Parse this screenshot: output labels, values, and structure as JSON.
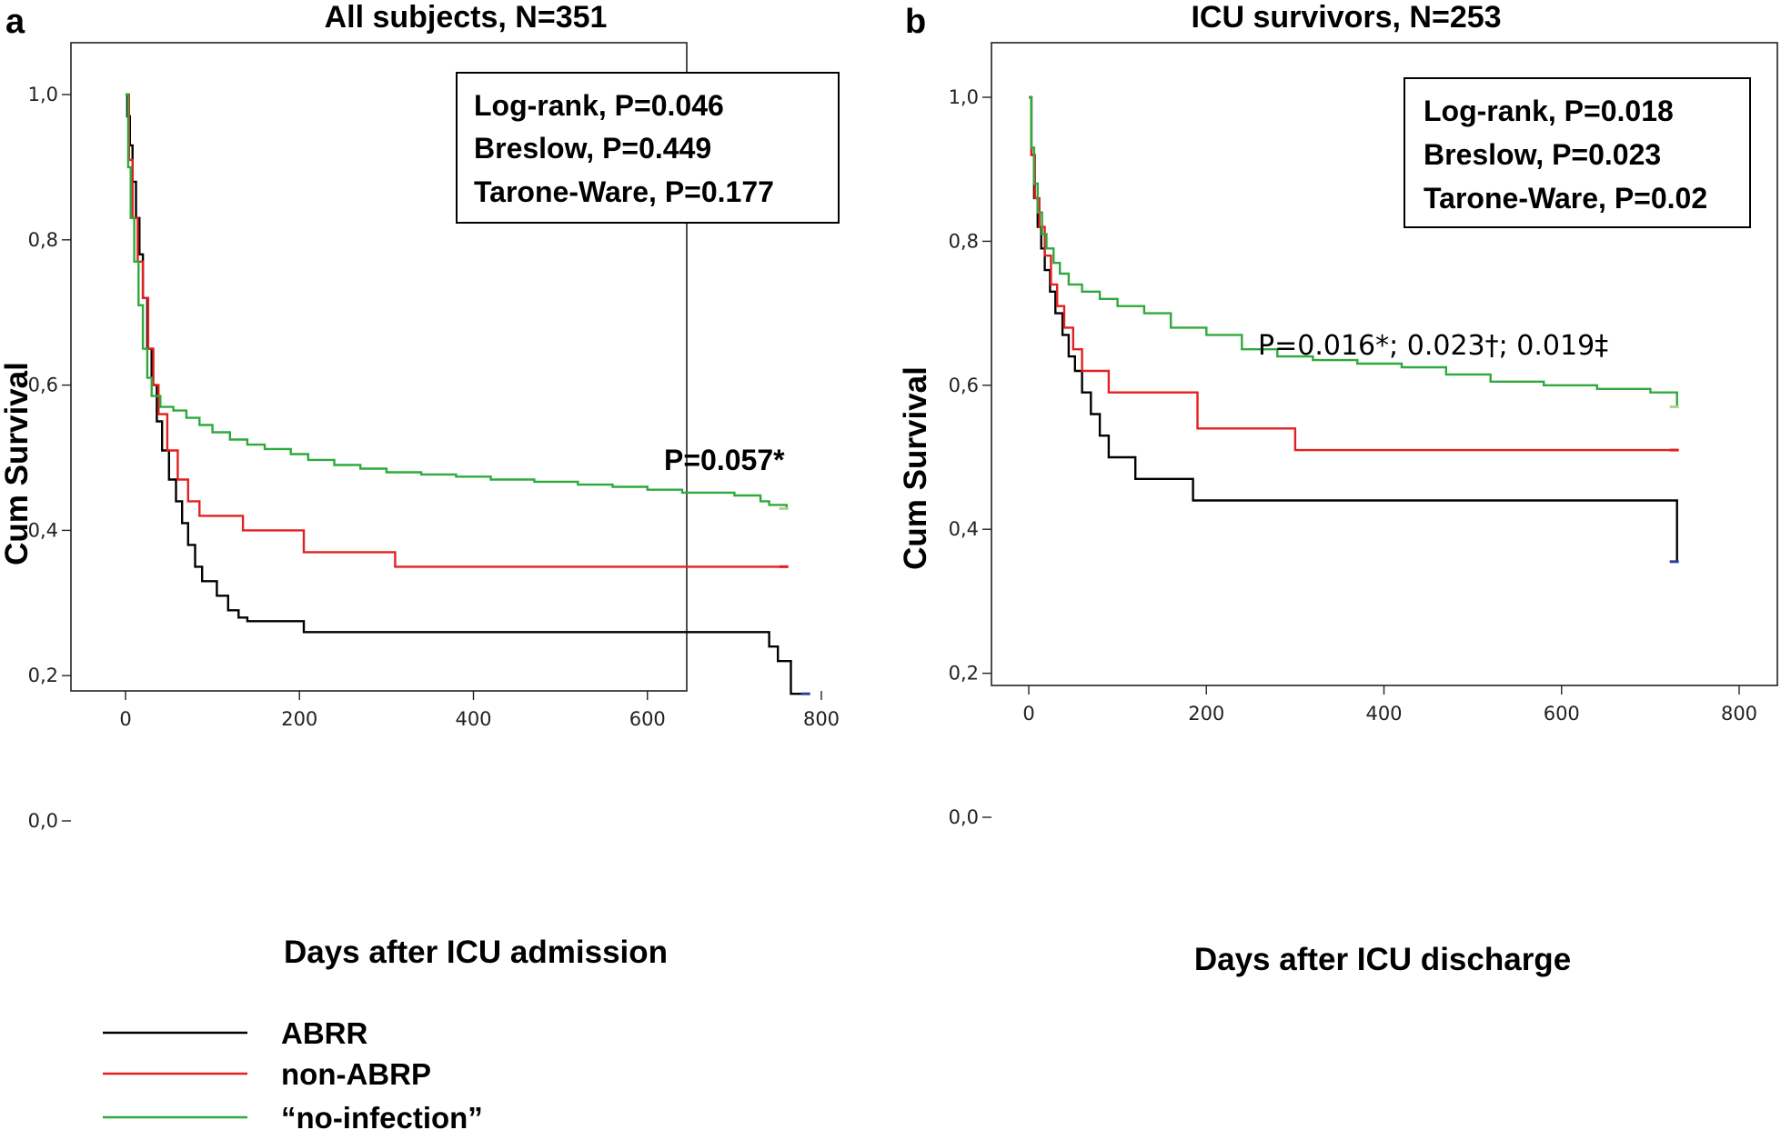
{
  "chart_data": [
    {
      "panel": "a",
      "type": "line",
      "title": "All subjects, N=351",
      "xlabel": "Days after ICU admission",
      "ylabel": "Cum Survival",
      "xlim": [
        -30,
        800
      ],
      "ylim": [
        -0.05,
        1.05
      ],
      "xticks": [
        0,
        200,
        400,
        600,
        800
      ],
      "xtick_labels": [
        "0",
        "200",
        "400",
        "600",
        "800"
      ],
      "yticks": [
        0,
        0.2,
        0.4,
        0.6,
        0.8,
        1.0
      ],
      "ytick_labels": [
        "0,0",
        "0,2",
        "0,4",
        "0,6",
        "0,8",
        "1,0"
      ],
      "stats_box": [
        "Log-rank, P=0.046",
        "Breslow, P=0.449",
        "Tarone-Ware, P=0.177"
      ],
      "stats_box_position": "top-right",
      "annotation": {
        "text": "P=0.057*",
        "x": 690,
        "y": 0.49
      },
      "series": [
        {
          "name": "ABRR",
          "color": "#000000",
          "x": [
            0,
            2,
            5,
            8,
            12,
            16,
            20,
            25,
            30,
            36,
            42,
            50,
            58,
            65,
            72,
            80,
            88,
            95,
            105,
            118,
            130,
            140,
            205,
            735,
            740,
            745,
            750,
            760,
            765,
            770,
            785
          ],
          "y": [
            1.0,
            0.97,
            0.93,
            0.88,
            0.83,
            0.78,
            0.72,
            0.65,
            0.6,
            0.55,
            0.51,
            0.47,
            0.44,
            0.41,
            0.38,
            0.35,
            0.33,
            0.33,
            0.31,
            0.29,
            0.28,
            0.275,
            0.26,
            0.26,
            0.24,
            0.24,
            0.22,
            0.22,
            0.175,
            0.175,
            0.175
          ]
        },
        {
          "name": "non-ABRP",
          "color": "#e32020",
          "x": [
            0,
            4,
            8,
            14,
            20,
            26,
            32,
            38,
            48,
            60,
            72,
            85,
            100,
            135,
            205,
            310,
            760
          ],
          "y": [
            1.0,
            0.91,
            0.83,
            0.77,
            0.72,
            0.65,
            0.6,
            0.56,
            0.51,
            0.47,
            0.44,
            0.42,
            0.42,
            0.4,
            0.37,
            0.35,
            0.35
          ]
        },
        {
          "name": "“no-infection”",
          "color": "#2eaa3c",
          "x": [
            0,
            3,
            6,
            10,
            15,
            20,
            25,
            30,
            40,
            55,
            70,
            85,
            100,
            120,
            140,
            160,
            190,
            210,
            240,
            270,
            300,
            340,
            380,
            420,
            470,
            520,
            560,
            600,
            640,
            700,
            730,
            740,
            760
          ],
          "y": [
            1.0,
            0.9,
            0.83,
            0.77,
            0.71,
            0.65,
            0.61,
            0.585,
            0.57,
            0.565,
            0.555,
            0.545,
            0.535,
            0.525,
            0.518,
            0.512,
            0.505,
            0.497,
            0.49,
            0.485,
            0.48,
            0.477,
            0.474,
            0.47,
            0.467,
            0.463,
            0.46,
            0.456,
            0.452,
            0.448,
            0.44,
            0.435,
            0.43
          ]
        }
      ]
    },
    {
      "panel": "b",
      "type": "line",
      "title": "ICU survivors, N=253",
      "xlabel": "Days after ICU discharge",
      "ylabel": "Cum Survival",
      "xlim": [
        -30,
        800
      ],
      "ylim": [
        -0.05,
        1.05
      ],
      "xticks": [
        0,
        200,
        400,
        600,
        800
      ],
      "xtick_labels": [
        "0",
        "200",
        "400",
        "600",
        "800"
      ],
      "yticks": [
        0,
        0.2,
        0.4,
        0.6,
        0.8,
        1.0
      ],
      "ytick_labels": [
        "0,0",
        "0,2",
        "0,4",
        "0,6",
        "0,8",
        "1,0"
      ],
      "stats_box": [
        "Log-rank, P=0.018",
        "Breslow, P=0.023",
        "Tarone-Ware, P=0.02"
      ],
      "stats_box_position": "top-right",
      "annotation": {
        "text": "P=0.016*; 0.023†; 0.019‡",
        "x": 255,
        "y": 0.63
      },
      "series": [
        {
          "name": "ABRR",
          "color": "#000000",
          "x": [
            0,
            3,
            6,
            10,
            14,
            18,
            24,
            30,
            38,
            45,
            52,
            60,
            70,
            80,
            90,
            100,
            120,
            185,
            730,
            730
          ],
          "y": [
            1.0,
            0.92,
            0.86,
            0.82,
            0.79,
            0.76,
            0.73,
            0.7,
            0.67,
            0.64,
            0.62,
            0.59,
            0.56,
            0.53,
            0.5,
            0.5,
            0.47,
            0.44,
            0.44,
            0.355
          ]
        },
        {
          "name": "non-ABRP",
          "color": "#e32020",
          "x": [
            0,
            3,
            7,
            12,
            18,
            25,
            32,
            40,
            50,
            60,
            90,
            120,
            190,
            300,
            730
          ],
          "y": [
            1.0,
            0.92,
            0.86,
            0.82,
            0.78,
            0.74,
            0.71,
            0.68,
            0.65,
            0.62,
            0.59,
            0.59,
            0.54,
            0.51,
            0.51
          ]
        },
        {
          "name": "“no-infection”",
          "color": "#2eaa3c",
          "x": [
            0,
            3,
            6,
            10,
            15,
            20,
            28,
            35,
            45,
            60,
            80,
            100,
            130,
            160,
            200,
            240,
            280,
            320,
            370,
            420,
            470,
            520,
            580,
            640,
            700,
            730
          ],
          "y": [
            1.0,
            0.93,
            0.88,
            0.84,
            0.81,
            0.79,
            0.77,
            0.755,
            0.74,
            0.73,
            0.72,
            0.71,
            0.7,
            0.68,
            0.67,
            0.65,
            0.64,
            0.635,
            0.63,
            0.625,
            0.615,
            0.605,
            0.6,
            0.595,
            0.59,
            0.57
          ]
        }
      ]
    }
  ],
  "legend": {
    "position": "bottom-left",
    "entries": [
      {
        "label": "ABRR",
        "color": "#000000"
      },
      {
        "label": "non-ABRP",
        "color": "#e32020"
      },
      {
        "label": "“no-infection”",
        "color": "#2eaa3c"
      }
    ]
  }
}
